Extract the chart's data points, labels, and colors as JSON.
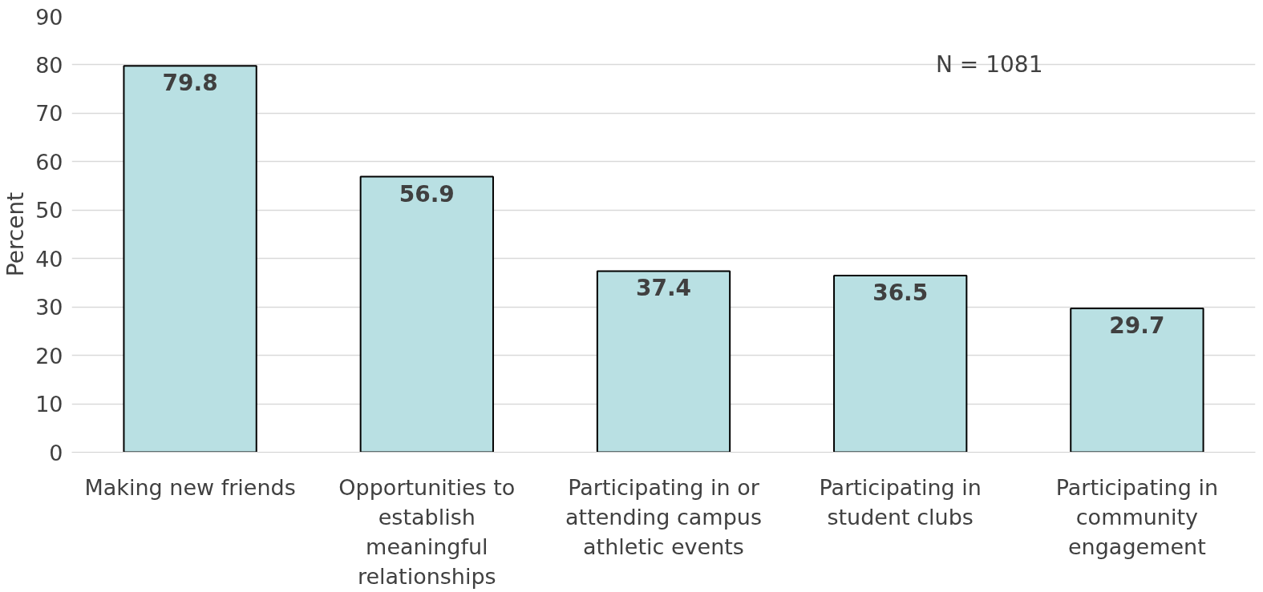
{
  "chart_data": {
    "type": "bar",
    "ylabel": "Percent",
    "categories": [
      "Making new friends",
      "Opportunities to establish meaningful relationships",
      "Participating in or attending campus athletic events",
      "Participating in student clubs",
      "Participating in community engagement"
    ],
    "values": [
      79.8,
      56.9,
      37.4,
      36.5,
      29.7
    ],
    "color": "#b9e0e3",
    "ylim": [
      0,
      90
    ],
    "yticks": [
      0,
      10,
      20,
      30,
      40,
      50,
      60,
      70,
      80,
      90
    ],
    "grid": "y",
    "data_labels": true,
    "annotations": [
      "N = 1081"
    ]
  }
}
